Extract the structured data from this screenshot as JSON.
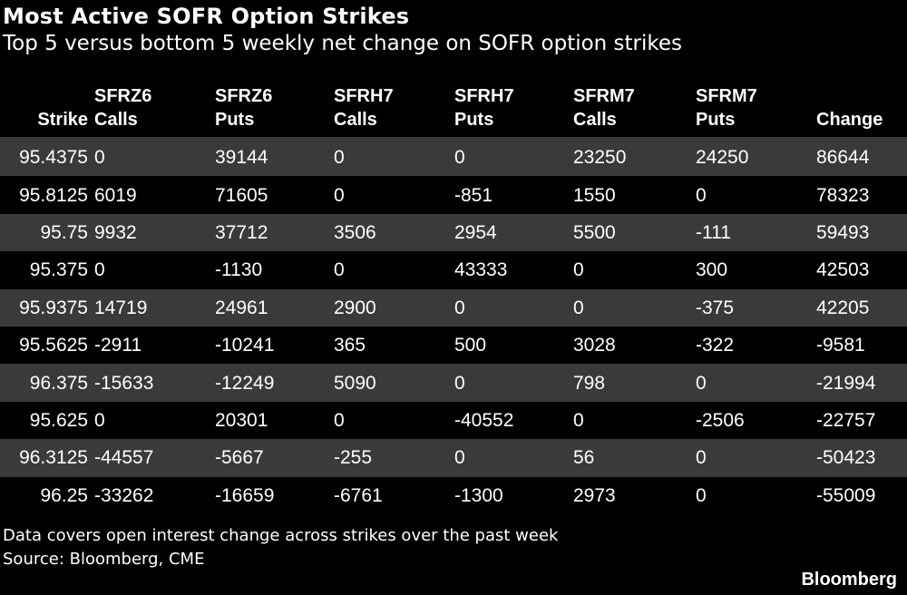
{
  "header": {
    "title": "Most Active SOFR Option Strikes",
    "subtitle": "Top 5 versus bottom 5 weekly net change on SOFR option strikes"
  },
  "chart_data": {
    "type": "table",
    "columns": [
      [
        "",
        "Strike"
      ],
      [
        "SFRZ6",
        "Calls"
      ],
      [
        "SFRZ6",
        "Puts"
      ],
      [
        "SFRH7",
        "Calls"
      ],
      [
        "SFRH7",
        "Puts"
      ],
      [
        "SFRM7",
        "Calls"
      ],
      [
        "SFRM7",
        "Puts"
      ],
      [
        "",
        "Change"
      ]
    ],
    "rows": [
      [
        "95.4375",
        "0",
        "39144",
        "0",
        "0",
        "23250",
        "24250",
        "86644"
      ],
      [
        "95.8125",
        "6019",
        "71605",
        "0",
        "-851",
        "1550",
        "0",
        "78323"
      ],
      [
        "95.75",
        "9932",
        "37712",
        "3506",
        "2954",
        "5500",
        "-111",
        "59493"
      ],
      [
        "95.375",
        "0",
        "-1130",
        "0",
        "43333",
        "0",
        "300",
        "42503"
      ],
      [
        "95.9375",
        "14719",
        "24961",
        "2900",
        "0",
        "0",
        "-375",
        "42205"
      ],
      [
        "95.5625",
        "-2911",
        "-10241",
        "365",
        "500",
        "3028",
        "-322",
        "-9581"
      ],
      [
        "96.375",
        "-15633",
        "-12249",
        "5090",
        "0",
        "798",
        "0",
        "-21994"
      ],
      [
        "95.625",
        "0",
        "20301",
        "0",
        "-40552",
        "0",
        "-2506",
        "-22757"
      ],
      [
        "96.3125",
        "-44557",
        "-5667",
        "-255",
        "0",
        "56",
        "0",
        "-50423"
      ],
      [
        "96.25",
        "-33262",
        "-16659",
        "-6761",
        "-1300",
        "2973",
        "0",
        "-55009"
      ]
    ],
    "row_shading": [
      "#3a3a3a",
      "#000000"
    ]
  },
  "footer": {
    "note": "Data covers open interest change across strikes over the past week",
    "source": "Source: Bloomberg, CME",
    "logo": "Bloomberg"
  },
  "colors": {
    "background": "#000000",
    "text": "#ffffff",
    "row_shade": "#3a3a3a"
  }
}
